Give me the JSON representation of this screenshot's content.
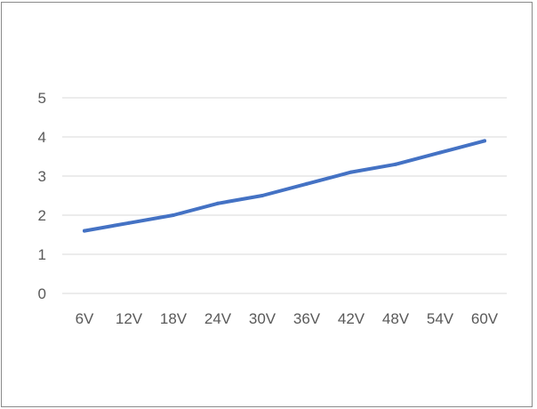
{
  "chart_data": {
    "type": "line",
    "title": "",
    "xlabel": "",
    "ylabel": "",
    "categories": [
      "6V",
      "12V",
      "18V",
      "24V",
      "30V",
      "36V",
      "42V",
      "48V",
      "54V",
      "60V"
    ],
    "series": [
      {
        "values": [
          1.6,
          1.8,
          2.0,
          2.3,
          2.5,
          2.8,
          3.1,
          3.3,
          3.6,
          3.9
        ],
        "color": "#4472c4"
      }
    ],
    "ylim": [
      0,
      5
    ],
    "yticks": [
      "0",
      "1",
      "2",
      "3",
      "4",
      "5"
    ],
    "grid": true,
    "legend": "none"
  }
}
